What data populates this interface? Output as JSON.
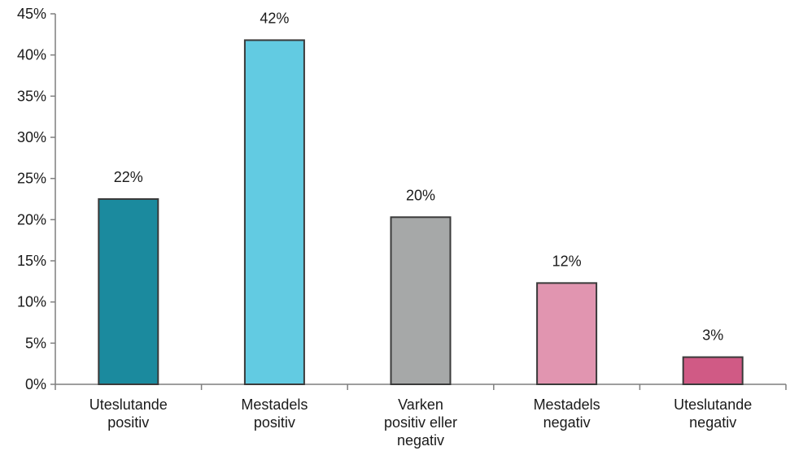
{
  "chart_data": {
    "type": "bar",
    "categories": [
      [
        "Uteslutande",
        "positiv"
      ],
      [
        "Mestadels",
        "positiv"
      ],
      [
        "Varken",
        "positiv eller",
        "negativ"
      ],
      [
        "Mestadels",
        "negativ"
      ],
      [
        "Uteslutande",
        "negativ"
      ]
    ],
    "values": [
      22.5,
      41.8,
      20.3,
      12.3,
      3.3
    ],
    "data_labels": [
      "22%",
      "42%",
      "20%",
      "12%",
      "3%"
    ],
    "bar_colors": [
      "#1b8a9e",
      "#62cbe2",
      "#a6a8a8",
      "#e195b0",
      "#d05a85"
    ],
    "ylim": [
      0,
      45
    ],
    "y_ticks": [
      0,
      5,
      10,
      15,
      20,
      25,
      30,
      35,
      40,
      45
    ],
    "y_tick_labels": [
      "0%",
      "5%",
      "10%",
      "15%",
      "20%",
      "25%",
      "30%",
      "35%",
      "40%",
      "45%"
    ],
    "title": "",
    "xlabel": "",
    "ylabel": "",
    "grid": false,
    "legend": "none"
  }
}
